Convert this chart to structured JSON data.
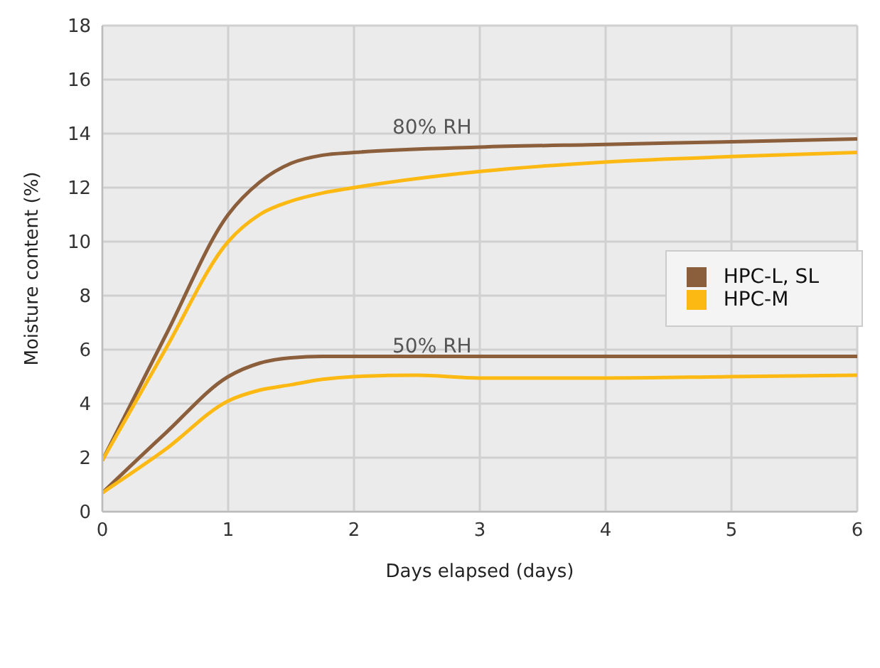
{
  "chart_data": {
    "type": "line",
    "xlabel": "Days elapsed (days)",
    "ylabel": "Moisture content (%)",
    "xlim": [
      0,
      6
    ],
    "xticks": [
      0,
      1,
      2,
      3,
      4,
      5,
      6
    ],
    "ylim": [
      0,
      18
    ],
    "yticks": [
      0,
      2,
      4,
      6,
      8,
      10,
      12,
      14,
      16,
      18
    ],
    "grid": true,
    "legend": "right",
    "line_style": "solid",
    "marker": "none",
    "annotations": [
      "80% RH",
      "50% RH"
    ],
    "series": [
      {
        "name": "HPC-L, SL",
        "color": "#8b5e3c",
        "x": [
          0,
          0.5,
          1,
          1.25,
          1.5,
          1.75,
          2,
          3,
          4,
          5,
          6
        ],
        "values": [
          1.9,
          6.5,
          11,
          12.2,
          12.9,
          13.2,
          13.3,
          13.5,
          13.6,
          13.7,
          13.8
        ]
      },
      {
        "name": "HPC-M",
        "color": "#fdb913",
        "x": [
          0,
          0.5,
          1,
          1.25,
          1.5,
          1.75,
          2,
          3,
          4,
          5,
          6
        ],
        "values": [
          1.9,
          6,
          10,
          11,
          11.5,
          11.8,
          12,
          12.6,
          12.95,
          13.15,
          13.3
        ]
      },
      {
        "color": "#8b5e3c",
        "x": [
          0,
          0.5,
          1,
          1.25,
          1.5,
          1.75,
          2,
          3,
          4,
          5,
          6
        ],
        "values": [
          0.7,
          2.9,
          5,
          5.5,
          5.7,
          5.75,
          5.75,
          5.75,
          5.75,
          5.75,
          5.75
        ]
      },
      {
        "color": "#fdb913",
        "x": [
          0,
          0.5,
          1,
          1.25,
          1.5,
          1.75,
          2,
          2.5,
          3,
          4,
          5,
          6
        ],
        "values": [
          0.7,
          2.3,
          4.1,
          4.5,
          4.7,
          4.9,
          5,
          5.05,
          4.95,
          4.95,
          5,
          5.05
        ]
      }
    ]
  }
}
